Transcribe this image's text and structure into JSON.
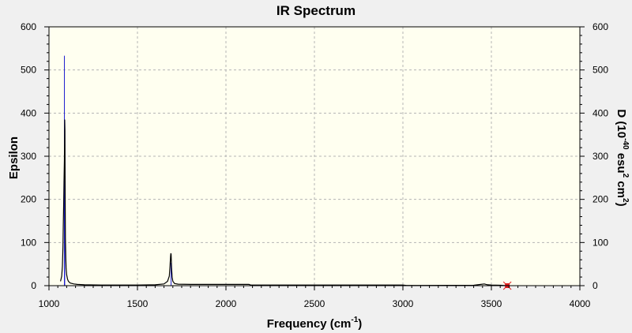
{
  "chart_data": {
    "type": "line",
    "title": "IR Spectrum",
    "xlabel_main": "Frequency (cm",
    "xlabel_sup": "-1",
    "xlabel_end": ")",
    "ylabel": "Epsilon",
    "y2label_parts": [
      "D (10",
      "-40",
      " esu",
      "2",
      " cm",
      "2",
      ")"
    ],
    "xlim": [
      1000,
      4000
    ],
    "ylim": [
      0,
      600
    ],
    "y2lim": [
      0,
      600
    ],
    "x_ticks": [
      1000,
      1500,
      2000,
      2500,
      3000,
      3500,
      4000
    ],
    "y_ticks": [
      0,
      100,
      200,
      300,
      400,
      500,
      600
    ],
    "grid": true,
    "spectrum_series": {
      "name": "Epsilon",
      "color": "#000000",
      "x": [
        1065,
        1072,
        1076,
        1079,
        1081,
        1083,
        1085,
        1086,
        1087,
        1088,
        1089,
        1090,
        1091,
        1092,
        1093,
        1095,
        1097,
        1100,
        1105,
        1110,
        1120,
        1140,
        1160,
        1200,
        1300,
        1400,
        1500,
        1600,
        1650,
        1670,
        1680,
        1684,
        1687,
        1689,
        1690,
        1691,
        1693,
        1696,
        1700,
        1710,
        1730,
        1800,
        2000,
        2100,
        2130,
        2140,
        2200,
        2500,
        3000,
        3020,
        3100,
        3400,
        3440,
        3460,
        3470,
        3480,
        3500,
        3550,
        3590
      ],
      "y": [
        10,
        22,
        45,
        90,
        140,
        190,
        240,
        270,
        290,
        330,
        385,
        360,
        250,
        170,
        110,
        65,
        40,
        25,
        15,
        10,
        6,
        4,
        3,
        2,
        1.5,
        1.5,
        1.5,
        2,
        4,
        10,
        22,
        45,
        68,
        75,
        73,
        62,
        40,
        20,
        10,
        5,
        3.5,
        3,
        3,
        3,
        3,
        1.5,
        1.5,
        1.5,
        1.5,
        0.5,
        0.5,
        1,
        3,
        4,
        3,
        2,
        1.5,
        1,
        0
      ]
    },
    "stick_series": {
      "name": "D",
      "color": "#2020d0",
      "sticks": [
        {
          "x": 1087,
          "y": 533
        },
        {
          "x": 1089,
          "y": 337
        },
        {
          "x": 1690,
          "y": 53
        },
        {
          "x": 3474,
          "y": 1
        }
      ]
    },
    "marker": {
      "x": 3590,
      "y": 0,
      "color": "#e02020"
    }
  },
  "colors": {
    "plot_background": "#fffff0",
    "frame": "#000000",
    "grid": "#b4b4b4",
    "window": "#f0f0f0"
  }
}
